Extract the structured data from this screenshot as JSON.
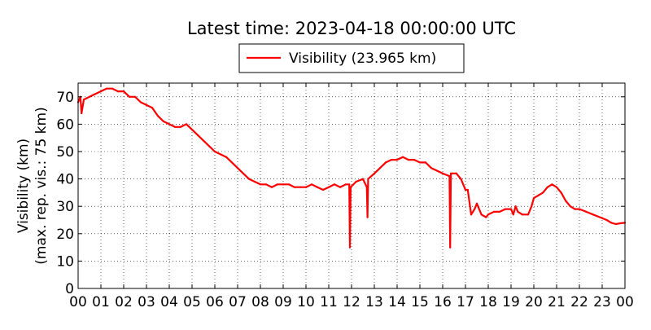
{
  "chart_data": {
    "type": "line",
    "title": "Latest time: 2023-04-18 00:00:00 UTC",
    "xlabel": "",
    "ylabel": "Visibility (km)",
    "ylabel2": "(max. rep. vis.: 75 km)",
    "xlim": [
      0,
      24
    ],
    "ylim": [
      0,
      75
    ],
    "x_ticks": [
      "00",
      "01",
      "02",
      "03",
      "04",
      "05",
      "06",
      "07",
      "08",
      "09",
      "10",
      "11",
      "12",
      "13",
      "14",
      "15",
      "16",
      "17",
      "18",
      "19",
      "20",
      "21",
      "22",
      "23",
      "00"
    ],
    "y_ticks": [
      0,
      10,
      20,
      30,
      40,
      50,
      60,
      70
    ],
    "grid": true,
    "legend_position": "top-center",
    "series": [
      {
        "name": "Visibility (23.965 km)",
        "color": "#ff0000",
        "x_unit": "hours since 00 UTC",
        "points": [
          [
            0.0,
            68
          ],
          [
            0.1,
            70
          ],
          [
            0.15,
            64
          ],
          [
            0.25,
            69
          ],
          [
            0.5,
            70
          ],
          [
            0.75,
            71
          ],
          [
            1.0,
            72
          ],
          [
            1.25,
            73
          ],
          [
            1.5,
            73
          ],
          [
            1.75,
            72
          ],
          [
            2.0,
            72
          ],
          [
            2.25,
            70
          ],
          [
            2.5,
            70
          ],
          [
            2.75,
            68
          ],
          [
            3.0,
            67
          ],
          [
            3.25,
            66
          ],
          [
            3.5,
            63
          ],
          [
            3.75,
            61
          ],
          [
            4.0,
            60
          ],
          [
            4.25,
            59
          ],
          [
            4.5,
            59
          ],
          [
            4.75,
            60
          ],
          [
            5.0,
            58
          ],
          [
            5.25,
            56
          ],
          [
            5.5,
            54
          ],
          [
            5.75,
            52
          ],
          [
            6.0,
            50
          ],
          [
            6.25,
            49
          ],
          [
            6.5,
            48
          ],
          [
            6.75,
            46
          ],
          [
            7.0,
            44
          ],
          [
            7.25,
            42
          ],
          [
            7.5,
            40
          ],
          [
            7.75,
            39
          ],
          [
            8.0,
            38
          ],
          [
            8.25,
            38
          ],
          [
            8.5,
            37
          ],
          [
            8.75,
            38
          ],
          [
            9.0,
            38
          ],
          [
            9.25,
            38
          ],
          [
            9.5,
            37
          ],
          [
            9.75,
            37
          ],
          [
            10.0,
            37
          ],
          [
            10.25,
            38
          ],
          [
            10.5,
            37
          ],
          [
            10.75,
            36
          ],
          [
            11.0,
            37
          ],
          [
            11.25,
            38
          ],
          [
            11.5,
            37
          ],
          [
            11.75,
            38
          ],
          [
            11.9,
            38
          ],
          [
            11.93,
            15
          ],
          [
            11.96,
            37
          ],
          [
            12.2,
            39
          ],
          [
            12.5,
            40
          ],
          [
            12.67,
            37
          ],
          [
            12.7,
            26
          ],
          [
            12.73,
            40
          ],
          [
            13.0,
            42
          ],
          [
            13.25,
            44
          ],
          [
            13.5,
            46
          ],
          [
            13.75,
            47
          ],
          [
            14.0,
            47
          ],
          [
            14.25,
            48
          ],
          [
            14.5,
            47
          ],
          [
            14.75,
            47
          ],
          [
            15.0,
            46
          ],
          [
            15.25,
            46
          ],
          [
            15.5,
            44
          ],
          [
            15.75,
            43
          ],
          [
            16.0,
            42
          ],
          [
            16.3,
            41
          ],
          [
            16.33,
            15
          ],
          [
            16.36,
            42
          ],
          [
            16.6,
            42
          ],
          [
            16.8,
            40
          ],
          [
            17.0,
            36
          ],
          [
            17.1,
            36
          ],
          [
            17.25,
            27
          ],
          [
            17.4,
            29
          ],
          [
            17.5,
            31
          ],
          [
            17.7,
            27
          ],
          [
            17.9,
            26
          ],
          [
            18.0,
            27
          ],
          [
            18.25,
            28
          ],
          [
            18.5,
            28
          ],
          [
            18.75,
            29
          ],
          [
            19.0,
            29
          ],
          [
            19.1,
            27
          ],
          [
            19.2,
            30
          ],
          [
            19.3,
            28
          ],
          [
            19.5,
            27
          ],
          [
            19.75,
            27
          ],
          [
            19.9,
            30
          ],
          [
            20.0,
            33
          ],
          [
            20.2,
            34
          ],
          [
            20.4,
            35
          ],
          [
            20.6,
            37
          ],
          [
            20.8,
            38
          ],
          [
            21.0,
            37
          ],
          [
            21.2,
            35
          ],
          [
            21.4,
            32
          ],
          [
            21.6,
            30
          ],
          [
            21.8,
            29
          ],
          [
            22.0,
            29
          ],
          [
            22.3,
            28
          ],
          [
            22.6,
            27
          ],
          [
            22.9,
            26
          ],
          [
            23.2,
            25
          ],
          [
            23.4,
            24
          ],
          [
            23.6,
            23.5
          ],
          [
            23.8,
            23.8
          ],
          [
            24.0,
            24
          ]
        ]
      }
    ]
  }
}
